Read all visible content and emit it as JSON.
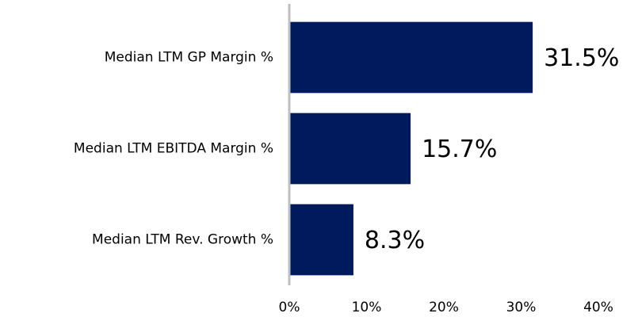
{
  "chart_data": {
    "type": "bar",
    "orientation": "horizontal",
    "categories": [
      "Median LTM GP Margin %",
      "Median LTM EBITDA Margin %",
      "Median LTM Rev. Growth %"
    ],
    "values": [
      31.5,
      15.7,
      8.3
    ],
    "value_labels": [
      "31.5%",
      "15.7%",
      "8.3%"
    ],
    "color": "#001a5e",
    "xlim": [
      0,
      40
    ],
    "xticks": [
      {
        "value": 0,
        "label": "0%"
      },
      {
        "value": 10,
        "label": "10%"
      },
      {
        "value": 20,
        "label": "20%"
      },
      {
        "value": 30,
        "label": "30%"
      },
      {
        "value": 40,
        "label": "40%"
      }
    ],
    "grid": false
  }
}
